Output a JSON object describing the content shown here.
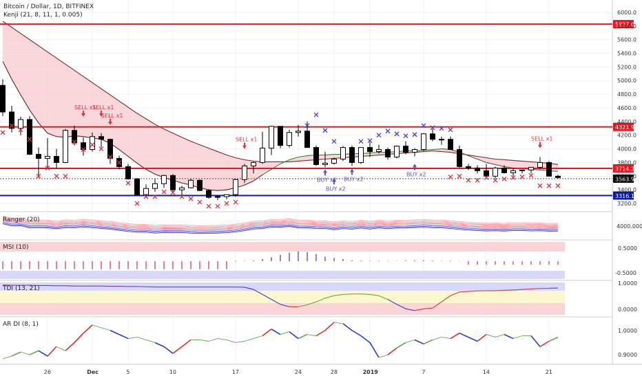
{
  "header": {
    "symbol_title": "Bitcoin / Dollar, 1D, BITFINEX",
    "overlay_title": "Kenji (21, 8, 11, 1, 0.005)"
  },
  "panes": {
    "ranger": {
      "title": "Ranger (20)",
      "tick": "4000.0000"
    },
    "msi": {
      "title": "MSI (10)",
      "ticks": [
        "0.5000",
        "-0.5000"
      ]
    },
    "tdi": {
      "title": "TDI (13, 21)",
      "ticks": [
        "1.0000",
        "0.0000"
      ]
    },
    "ardi": {
      "title": "AR DI (8, 1)",
      "ticks": [
        "1.0000",
        "0.9000"
      ]
    }
  },
  "axis": {
    "price_ticks": [
      "6000.0",
      "5800.0",
      "5600.0",
      "5400.0",
      "5200.0",
      "5000.0",
      "4800.0",
      "4600.0",
      "4400.0",
      "4200.0",
      "4000.0",
      "3800.0",
      "3600.0",
      "3400.0",
      "3200.0"
    ],
    "x_ticks": [
      "26",
      "Dec",
      "5",
      "10",
      "17",
      "24",
      "28",
      "2019",
      "7",
      "14",
      "21"
    ]
  },
  "colors": {
    "bull": "#ffffff",
    "bear": "#000000",
    "resistance": "#e8141e",
    "support": "#0a1aa8",
    "sell_marker": "#e0303a",
    "buy_marker": "#5a4fd4",
    "x_red": "#e0303a",
    "x_blue": "#4a3fd0",
    "cloud": "#f7c9cf"
  },
  "chart_data": {
    "type": "candlestick",
    "title": "Bitcoin / Dollar, 1D, BITFINEX",
    "ylim": [
      3100,
      6150
    ],
    "x": [
      "Nov 21",
      "Nov 22",
      "Nov 23",
      "Nov 24",
      "Nov 25",
      "Nov 26",
      "Nov 27",
      "Nov 28",
      "Nov 29",
      "Nov 30",
      "Dec 1",
      "Dec 2",
      "Dec 3",
      "Dec 4",
      "Dec 5",
      "Dec 6",
      "Dec 7",
      "Dec 8",
      "Dec 9",
      "Dec 10",
      "Dec 11",
      "Dec 12",
      "Dec 13",
      "Dec 14",
      "Dec 15",
      "Dec 16",
      "Dec 17",
      "Dec 18",
      "Dec 19",
      "Dec 20",
      "Dec 21",
      "Dec 22",
      "Dec 23",
      "Dec 24",
      "Dec 25",
      "Dec 26",
      "Dec 27",
      "Dec 28",
      "Dec 29",
      "Dec 30",
      "Dec 31",
      "Jan 1",
      "Jan 2",
      "Jan 3",
      "Jan 4",
      "Jan 5",
      "Jan 6",
      "Jan 7",
      "Jan 8",
      "Jan 9",
      "Jan 10",
      "Jan 11",
      "Jan 12",
      "Jan 13",
      "Jan 14",
      "Jan 15",
      "Jan 16",
      "Jan 17",
      "Jan 18",
      "Jan 19",
      "Jan 20",
      "Jan 21",
      "Jan 22"
    ],
    "ohlc": [
      [
        4930,
        5020,
        4480,
        4540
      ],
      [
        4540,
        4630,
        4240,
        4300
      ],
      [
        4300,
        4470,
        4200,
        4430
      ],
      [
        4430,
        4480,
        3910,
        3920
      ],
      [
        3920,
        4020,
        3580,
        3860
      ],
      [
        3860,
        4160,
        3700,
        3890
      ],
      [
        3890,
        4000,
        3710,
        3800
      ],
      [
        3800,
        4290,
        3790,
        4270
      ],
      [
        4270,
        4340,
        4050,
        4090
      ],
      [
        4090,
        4170,
        3900,
        3990
      ],
      [
        3990,
        4240,
        3960,
        4180
      ],
      [
        4180,
        4230,
        4020,
        4140
      ],
      [
        4140,
        4150,
        3780,
        3860
      ],
      [
        3860,
        3900,
        3700,
        3740
      ],
      [
        3740,
        3780,
        3550,
        3560
      ],
      [
        3560,
        3570,
        3320,
        3330
      ],
      [
        3330,
        3480,
        3300,
        3420
      ],
      [
        3420,
        3560,
        3370,
        3490
      ],
      [
        3490,
        3620,
        3430,
        3610
      ],
      [
        3610,
        3630,
        3370,
        3400
      ],
      [
        3400,
        3460,
        3320,
        3430
      ],
      [
        3430,
        3560,
        3420,
        3540
      ],
      [
        3540,
        3550,
        3380,
        3390
      ],
      [
        3390,
        3410,
        3270,
        3290
      ],
      [
        3290,
        3320,
        3250,
        3300
      ],
      [
        3300,
        3330,
        3260,
        3330
      ],
      [
        3330,
        3560,
        3300,
        3550
      ],
      [
        3550,
        3780,
        3500,
        3750
      ],
      [
        3750,
        3810,
        3640,
        3800
      ],
      [
        3800,
        4250,
        3780,
        4010
      ],
      [
        4010,
        4340,
        3910,
        4330
      ],
      [
        4330,
        4330,
        4010,
        4050
      ],
      [
        4050,
        4280,
        4020,
        4240
      ],
      [
        4240,
        4350,
        4180,
        4260
      ],
      [
        4260,
        4400,
        4020,
        4020
      ],
      [
        4020,
        4050,
        3750,
        3770
      ],
      [
        3770,
        3960,
        3730,
        3790
      ],
      [
        3790,
        3870,
        3770,
        3850
      ],
      [
        3850,
        4040,
        3820,
        4020
      ],
      [
        4020,
        4050,
        3750,
        3800
      ],
      [
        3800,
        4020,
        3780,
        4020
      ],
      [
        4020,
        4100,
        3880,
        3960
      ],
      [
        3960,
        4060,
        3930,
        3990
      ],
      [
        3990,
        4020,
        3840,
        3880
      ],
      [
        3880,
        4050,
        3860,
        4040
      ],
      [
        4040,
        4110,
        3920,
        3950
      ],
      [
        3950,
        4010,
        3890,
        3990
      ],
      [
        3990,
        4230,
        3970,
        4220
      ],
      [
        4220,
        4290,
        4110,
        4140
      ],
      [
        4140,
        4180,
        4060,
        4140
      ],
      [
        4140,
        4180,
        3990,
        3990
      ],
      [
        3990,
        4050,
        3720,
        3740
      ],
      [
        3740,
        3780,
        3690,
        3720
      ],
      [
        3720,
        3760,
        3640,
        3680
      ],
      [
        3680,
        3780,
        3600,
        3600
      ],
      [
        3600,
        3740,
        3560,
        3720
      ],
      [
        3720,
        3760,
        3640,
        3650
      ],
      [
        3650,
        3720,
        3600,
        3680
      ],
      [
        3680,
        3700,
        3640,
        3690
      ],
      [
        3690,
        3730,
        3640,
        3730
      ],
      [
        3730,
        3880,
        3700,
        3800
      ],
      [
        3800,
        3820,
        3600,
        3600
      ],
      [
        3600,
        3620,
        3560,
        3580
      ]
    ],
    "horizontal_levels": [
      {
        "label": "5827.0",
        "value": 5827.0,
        "color": "red"
      },
      {
        "label": "4321.9",
        "value": 4321.9,
        "color": "red"
      },
      {
        "label": "3714.3",
        "value": 3714.3,
        "color": "red"
      },
      {
        "label": "3563.9",
        "value": 3563.9,
        "color": "dotted"
      },
      {
        "label": "3316.1",
        "value": 3316.1,
        "color": "blue"
      }
    ],
    "kenji_upper": [
      5870,
      5780,
      5690,
      5600,
      5510,
      5420,
      5330,
      5240,
      5150,
      5060,
      4970,
      4880,
      4790,
      4700,
      4610,
      4520,
      4440,
      4360,
      4290,
      4230,
      4170,
      4110,
      4060,
      4010,
      3960,
      3910,
      3870,
      3840,
      3820,
      3810,
      3810,
      3810,
      3810,
      3820,
      3830,
      3840,
      3850,
      3860,
      3870,
      3880,
      3890,
      3900,
      3910,
      3920,
      3930,
      3940,
      3950,
      3960,
      3970,
      3960,
      3950,
      3930,
      3910,
      3890,
      3870,
      3850,
      3840,
      3830,
      3820,
      3810,
      3800,
      3790,
      3770
    ],
    "kenji_lower": [
      5280,
      5020,
      4790,
      4570,
      4380,
      4230,
      4180,
      4170,
      4190,
      4180,
      4160,
      4140,
      4080,
      3990,
      3890,
      3790,
      3700,
      3630,
      3580,
      3540,
      3500,
      3470,
      3430,
      3400,
      3390,
      3400,
      3430,
      3470,
      3530,
      3620,
      3700,
      3780,
      3840,
      3880,
      3900,
      3910,
      3910,
      3920,
      3920,
      3930,
      3930,
      3940,
      3950,
      3950,
      3960,
      3970,
      3970,
      3980,
      3990,
      4000,
      3990,
      3950,
      3900,
      3850,
      3800,
      3770,
      3740,
      3720,
      3710,
      3700,
      3690,
      3680,
      3670
    ],
    "sell_markers": [
      {
        "date": "Nov 30",
        "label": "SELL x1",
        "price": 4520
      },
      {
        "date": "Dec 2",
        "label": "SELL x1",
        "price": 4520
      },
      {
        "date": "Dec 3",
        "label": "SELL x1",
        "price": 4400
      },
      {
        "date": "Dec 18",
        "label": "SELL x1",
        "price": 4050
      },
      {
        "date": "Jan 20",
        "label": "SELL x1",
        "price": 4060
      }
    ],
    "buy_markers": [
      {
        "date": "Dec 27",
        "label": "BUY x2",
        "price": 3650
      },
      {
        "date": "Dec 28",
        "label": "BUY x2",
        "price": 3520
      },
      {
        "date": "Dec 30",
        "label": "BUY x2",
        "price": 3660
      },
      {
        "date": "Jan 6",
        "label": "BUY x2",
        "price": 3730
      }
    ],
    "x_markers_red": [
      [
        0,
        4240
      ],
      [
        1,
        4340
      ],
      [
        2,
        4280
      ],
      [
        3,
        4140
      ],
      [
        4,
        3600
      ],
      [
        5,
        3720
      ],
      [
        6,
        3600
      ],
      [
        7,
        3600
      ],
      [
        8,
        4100
      ],
      [
        9,
        3990
      ],
      [
        10,
        4060
      ],
      [
        11,
        4000
      ],
      [
        12,
        3880
      ],
      [
        13,
        3800
      ],
      [
        14,
        3500
      ],
      [
        15,
        3200
      ],
      [
        16,
        3300
      ],
      [
        17,
        3300
      ],
      [
        18,
        3370
      ],
      [
        19,
        3360
      ],
      [
        20,
        3300
      ],
      [
        21,
        3270
      ],
      [
        22,
        3220
      ],
      [
        23,
        3160
      ],
      [
        24,
        3160
      ],
      [
        25,
        3200
      ],
      [
        26,
        3220
      ],
      [
        50,
        3590
      ],
      [
        51,
        3600
      ],
      [
        52,
        3540
      ],
      [
        53,
        3540
      ],
      [
        54,
        3580
      ],
      [
        55,
        3540
      ],
      [
        56,
        3560
      ],
      [
        57,
        3580
      ],
      [
        58,
        3590
      ],
      [
        59,
        3610
      ],
      [
        60,
        3460
      ],
      [
        61,
        3460
      ],
      [
        62,
        3460
      ]
    ],
    "x_markers_blue": [
      [
        34,
        4340
      ],
      [
        35,
        4500
      ],
      [
        36,
        4270
      ],
      [
        37,
        4110
      ],
      [
        40,
        4110
      ],
      [
        41,
        4120
      ],
      [
        42,
        4200
      ],
      [
        43,
        4260
      ],
      [
        44,
        4220
      ],
      [
        45,
        4190
      ],
      [
        46,
        4210
      ],
      [
        47,
        4340
      ],
      [
        48,
        4310
      ],
      [
        49,
        4300
      ],
      [
        50,
        4280
      ]
    ],
    "ranger": {
      "tick": 4000
    },
    "msi": {
      "values": [
        -0.45,
        -0.45,
        -0.45,
        -0.45,
        -0.45,
        -0.45,
        -0.45,
        -0.45,
        -0.45,
        -0.45,
        -0.45,
        -0.45,
        -0.45,
        -0.45,
        -0.45,
        -0.45,
        -0.45,
        -0.45,
        -0.45,
        -0.45,
        -0.45,
        -0.45,
        -0.45,
        -0.45,
        -0.45,
        -0.45,
        0.0,
        0.02,
        0.05,
        0.12,
        0.22,
        0.35,
        0.48,
        0.55,
        0.5,
        0.4,
        0.25,
        0.18,
        0.12,
        0.05,
        0.03,
        0.02,
        0.01,
        0.02,
        0.02,
        0.03,
        0.04,
        0.05,
        0.03,
        0.02,
        0.0,
        -0.02,
        -0.2,
        -0.2,
        -0.2,
        -0.2,
        -0.2,
        -0.2,
        -0.2,
        -0.2,
        -0.2,
        -0.2,
        -0.2
      ]
    },
    "tdi": {
      "values": [
        0.98,
        0.97,
        0.97,
        0.97,
        0.96,
        0.96,
        0.95,
        0.95,
        0.94,
        0.94,
        0.94,
        0.94,
        0.93,
        0.93,
        0.92,
        0.92,
        0.91,
        0.9,
        0.9,
        0.9,
        0.9,
        0.9,
        0.9,
        0.9,
        0.9,
        0.9,
        0.9,
        0.89,
        0.8,
        0.6,
        0.4,
        0.2,
        0.1,
        0.1,
        0.18,
        0.3,
        0.45,
        0.55,
        0.6,
        0.62,
        0.62,
        0.6,
        0.55,
        0.4,
        0.2,
        0.02,
        -0.05,
        0.02,
        0.05,
        0.3,
        0.55,
        0.7,
        0.72,
        0.74,
        0.75,
        0.75,
        0.77,
        0.78,
        0.8,
        0.82,
        0.84,
        0.85,
        0.86
      ]
    },
    "ardi": {
      "values": [
        0.895,
        0.905,
        0.92,
        0.91,
        0.925,
        0.905,
        0.94,
        0.925,
        0.955,
        0.99,
        1.02,
        1.01,
        1.0,
        0.985,
        0.97,
        0.975,
        0.965,
        0.955,
        0.94,
        0.915,
        0.94,
        0.965,
        0.965,
        0.96,
        0.97,
        0.965,
        0.955,
        0.96,
        0.97,
        0.98,
        1.005,
        0.985,
        0.995,
        0.97,
        0.985,
        0.98,
        1.0,
        1.03,
        1.025,
        1.0,
        0.98,
        0.955,
        0.9,
        0.91,
        0.935,
        0.955,
        0.965,
        0.95,
        0.965,
        0.975,
        0.97,
        0.99,
        0.975,
        0.96,
        0.985,
        0.975,
        0.985,
        0.97,
        0.98,
        0.98,
        0.94,
        0.96,
        0.975
      ]
    }
  }
}
